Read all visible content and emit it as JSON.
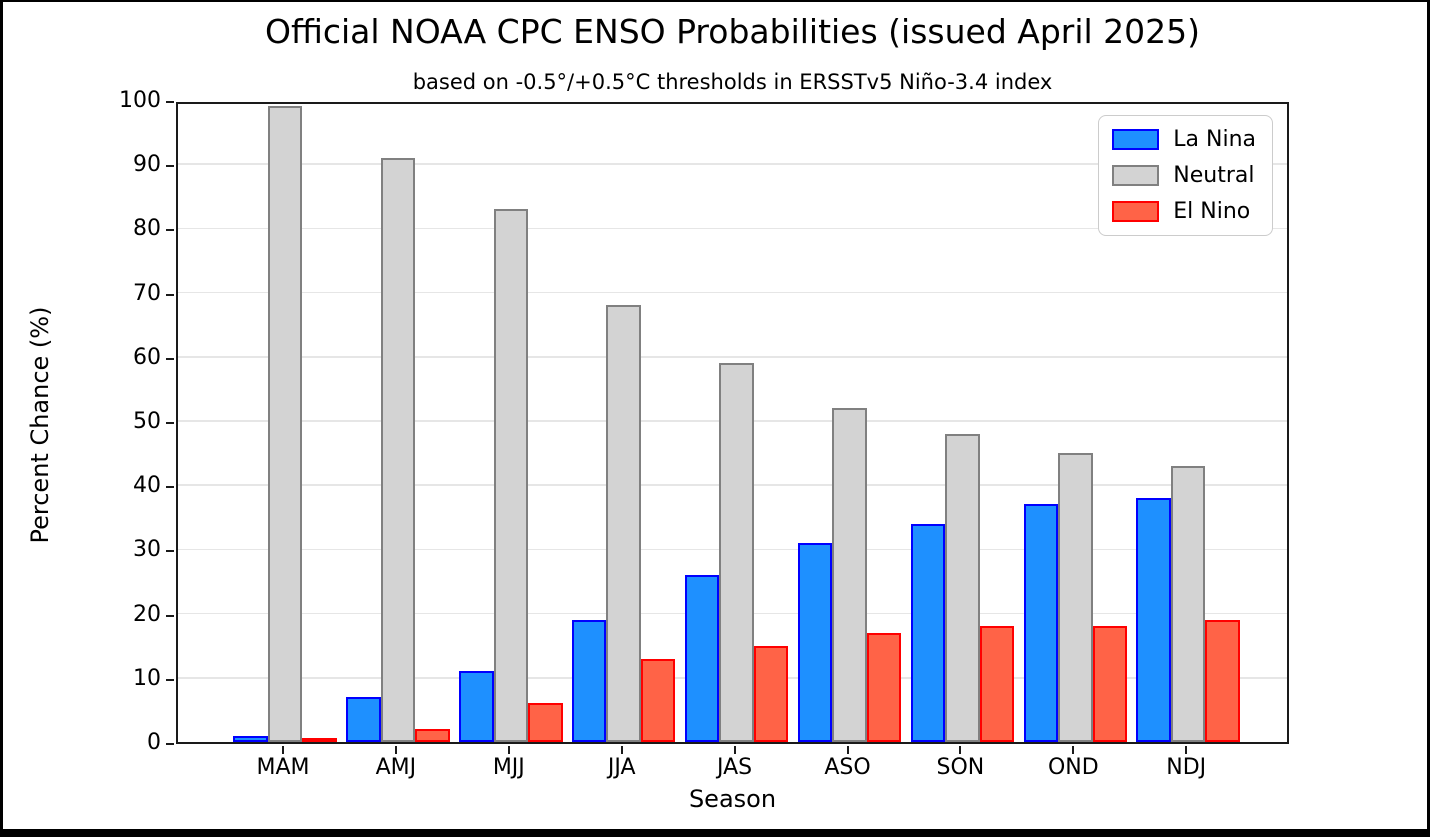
{
  "frame": {
    "background": "#ffffff",
    "border_color": "#000000"
  },
  "chart_data": {
    "type": "bar",
    "title": "Official NOAA CPC ENSO Probabilities (issued April 2025)",
    "subtitle": "based on -0.5°/+0.5°C thresholds in ERSSTv5 Niño-3.4 index",
    "xlabel": "Season",
    "ylabel": "Percent Chance (%)",
    "ylim": [
      0,
      100
    ],
    "ytick_step": 10,
    "grid": "horizontal",
    "grid_color": "#e6e6e6",
    "legend_position": "upper-right",
    "categories": [
      "MAM",
      "AMJ",
      "MJJ",
      "JJA",
      "JAS",
      "ASO",
      "SON",
      "OND",
      "NDJ"
    ],
    "series": [
      {
        "name": "La Nina",
        "fill": "#1E90FF",
        "edge": "#0000FF",
        "values": [
          1,
          7,
          11,
          19,
          26,
          31,
          34,
          37,
          38
        ]
      },
      {
        "name": "Neutral",
        "fill": "#D3D3D3",
        "edge": "#808080",
        "values": [
          99,
          91,
          83,
          68,
          59,
          52,
          48,
          45,
          43
        ]
      },
      {
        "name": "El Nino",
        "fill": "#FF6347",
        "edge": "#FF0000",
        "values": [
          0,
          2,
          6,
          13,
          15,
          17,
          18,
          18,
          19
        ]
      }
    ]
  }
}
